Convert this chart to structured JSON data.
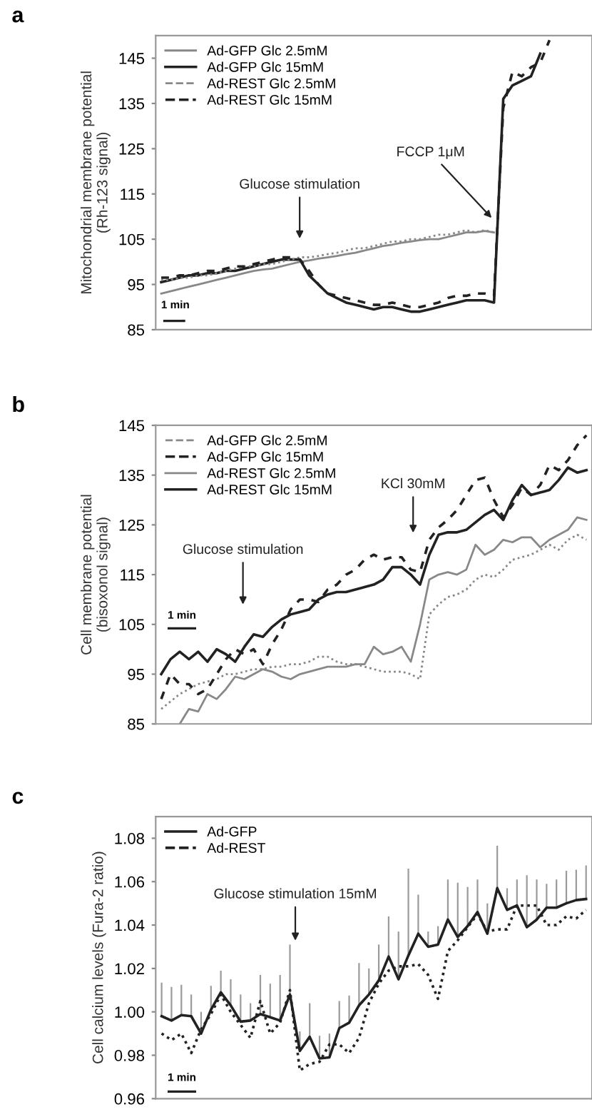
{
  "chart_data": [
    {
      "type": "line",
      "title": "a",
      "ylabel": "Mitochondrial membrane potential\n(Rh-123 signal)",
      "categories": [
        null,
        null,
        null,
        null,
        null,
        null,
        null,
        null,
        null,
        null,
        null,
        null,
        null,
        null,
        null,
        null,
        null,
        null,
        null,
        null,
        null,
        null,
        null,
        null,
        null,
        null,
        null,
        null,
        null,
        null,
        null,
        null,
        null,
        null,
        null,
        null,
        null,
        null,
        null,
        null,
        null,
        null,
        null,
        null,
        null,
        null,
        null
      ],
      "ylim": [
        85,
        150
      ],
      "yticks": [
        85,
        95,
        105,
        115,
        125,
        135,
        145
      ],
      "tick_labels": "y",
      "legend": "top left",
      "annotations": [
        "Glucose stimulation",
        "FCCP 1μM",
        "1 min"
      ],
      "series": [
        {
          "name": "Ad-GFP Glc 2.5mM",
          "color": "#888888",
          "line_style": "solid",
          "values": [
            93,
            93.5,
            94,
            94.5,
            95,
            95.5,
            96,
            96.5,
            97,
            97.5,
            98,
            98.3,
            98.5,
            99,
            99.5,
            100,
            100.3,
            100.7,
            101,
            101.3,
            101.7,
            102,
            102.5,
            103,
            103.5,
            103.8,
            104.2,
            104.5,
            104.8,
            105,
            105,
            105.5,
            106,
            106.5,
            106.5,
            106.8,
            106.5,
            null,
            null,
            null,
            null,
            null,
            null,
            null,
            null,
            null,
            null
          ]
        },
        {
          "name": "Ad-GFP Glc 15mM",
          "color": "#222222",
          "line_style": "solid",
          "values": [
            95.5,
            96,
            96.5,
            97,
            97,
            97.5,
            97.5,
            98,
            98,
            98.5,
            99,
            99.5,
            100,
            100.5,
            100.5,
            100.5,
            97,
            95,
            93,
            92,
            91,
            90.5,
            90,
            89.5,
            90,
            90,
            89.5,
            89,
            89,
            89.5,
            90,
            90.5,
            91,
            91.5,
            91.5,
            91.5,
            91,
            136,
            139,
            140,
            141,
            146,
            null,
            null,
            null,
            null,
            null
          ]
        },
        {
          "name": "Ad-REST Glc 2.5mM",
          "color": "#888888",
          "line_style": "dotted",
          "values": [
            96,
            96,
            96.5,
            96.5,
            97,
            97,
            97.5,
            98,
            98.5,
            99,
            99,
            99.5,
            99.5,
            100,
            100.5,
            101,
            101,
            101.3,
            101.7,
            102,
            102.5,
            103,
            103,
            103.5,
            104,
            104.5,
            104.5,
            105,
            105,
            105.5,
            106,
            106,
            106.5,
            107,
            106.5,
            107,
            106.5,
            null,
            null,
            null,
            null,
            null,
            null,
            null,
            null,
            null,
            null
          ]
        },
        {
          "name": "Ad-REST Glc 15mM",
          "color": "#222222",
          "line_style": "dashed",
          "values": [
            96.5,
            96.5,
            97,
            97,
            97.5,
            98,
            98,
            98.5,
            99,
            99,
            99.5,
            100,
            100.5,
            101,
            101,
            100.5,
            98,
            95,
            93,
            92.5,
            92,
            91.5,
            91,
            90.5,
            90.5,
            91,
            90.5,
            90,
            90,
            90.5,
            91,
            92,
            92.5,
            92.5,
            93,
            93,
            92.5,
            134,
            142,
            141,
            143,
            144,
            149,
            null,
            null,
            null,
            null
          ]
        }
      ]
    },
    {
      "type": "line",
      "title": "b",
      "ylabel": "Cell membrane potential\n(bisoxonol signal)",
      "categories": [
        null,
        null,
        null,
        null,
        null,
        null,
        null,
        null,
        null,
        null,
        null,
        null,
        null,
        null,
        null,
        null,
        null,
        null,
        null,
        null,
        null,
        null,
        null,
        null,
        null,
        null,
        null,
        null,
        null,
        null,
        null,
        null,
        null,
        null,
        null,
        null,
        null,
        null,
        null,
        null,
        null,
        null,
        null,
        null,
        null,
        null,
        null
      ],
      "ylim": [
        85,
        145
      ],
      "yticks": [
        85,
        95,
        105,
        115,
        125,
        135,
        145
      ],
      "tick_labels": "y",
      "legend": "top left",
      "annotations": [
        "Glucose stimulation",
        "KCl 30mM",
        "1 min"
      ],
      "series": [
        {
          "name": "Ad-GFP Glc 2.5mM",
          "color": "#888888",
          "line_style": "dotted",
          "values": [
            88,
            89.5,
            91,
            92,
            93,
            93.5,
            94,
            95,
            95,
            95.5,
            96,
            96,
            96.5,
            96.5,
            97,
            97,
            97.5,
            98.5,
            98.5,
            97.5,
            97,
            97,
            96.5,
            96,
            95.5,
            95.5,
            95.5,
            95,
            94,
            107,
            109,
            110.5,
            111,
            112,
            114,
            115,
            114.5,
            116,
            118,
            118.5,
            119,
            120,
            121,
            120,
            122,
            123,
            122
          ]
        },
        {
          "name": "Ad-GFP Glc 15mM",
          "color": "#222222",
          "line_style": "dashed",
          "values": [
            90,
            95,
            93,
            93,
            91,
            92,
            95,
            98,
            100,
            99,
            100,
            97,
            101,
            104,
            108,
            110,
            110,
            109.5,
            112,
            113,
            115,
            116,
            118,
            119,
            118,
            118.5,
            118.5,
            116,
            115.5,
            122,
            124.5,
            126,
            128,
            131,
            134,
            134.5,
            130,
            126.5,
            129,
            132.5,
            131,
            133,
            137,
            136,
            138,
            141,
            143
          ]
        },
        {
          "name": "Ad-REST Glc 2.5mM",
          "color": "#888888",
          "line_style": "solid",
          "values": [
            null,
            null,
            85,
            88,
            87.5,
            91,
            90,
            92,
            94.5,
            94,
            95,
            96,
            95.5,
            94.5,
            94,
            95,
            95.5,
            96,
            96.5,
            96.5,
            96.5,
            97,
            97,
            100.5,
            99,
            99.5,
            100.5,
            97.5,
            105,
            114,
            115,
            115.5,
            115,
            116,
            121,
            119,
            120,
            122,
            121.5,
            122.5,
            122.5,
            120.5,
            122,
            123,
            124,
            126.5,
            126
          ]
        },
        {
          "name": "Ad-REST Glc 15mM",
          "color": "#222222",
          "line_style": "solid",
          "values": [
            95,
            98,
            99.5,
            98,
            99.5,
            97.5,
            100,
            99,
            97.5,
            100.5,
            103,
            102.5,
            104.5,
            106,
            107,
            107.5,
            108,
            110,
            111,
            111.5,
            111.5,
            112,
            112.5,
            113,
            114,
            116.5,
            116.5,
            115,
            113,
            119,
            123,
            123.5,
            123.5,
            124,
            125.5,
            127,
            128,
            126,
            130,
            133,
            131,
            131.5,
            132,
            134,
            136.5,
            135.5,
            136
          ]
        }
      ]
    },
    {
      "type": "line",
      "title": "c",
      "ylabel": "Cell calcium levels (Fura-2 ratio)",
      "categories": [
        null,
        null,
        null,
        null,
        null,
        null,
        null,
        null,
        null,
        null,
        null,
        null,
        null,
        null,
        null,
        null,
        null,
        null,
        null,
        null,
        null,
        null,
        null,
        null,
        null,
        null,
        null,
        null,
        null,
        null,
        null,
        null,
        null,
        null,
        null,
        null,
        null,
        null,
        null,
        null,
        null,
        null,
        null,
        null
      ],
      "ylim": [
        0.96,
        1.09
      ],
      "yticks": [
        {
          "value": 0.96,
          "label": "0.96"
        },
        {
          "value": 0.98,
          "label": "0.98"
        },
        {
          "value": 1.0,
          "label": "1.00"
        },
        {
          "value": 1.02,
          "label": "1.02"
        },
        {
          "value": 1.04,
          "label": "1.04"
        },
        {
          "value": 1.06,
          "label": "1.06"
        },
        {
          "value": 1.08,
          "label": "1.08"
        }
      ],
      "tick_labels": "y",
      "legend": "top left",
      "annotations": [
        "Glucose stimulation 15mM",
        "1 min"
      ],
      "series": [
        {
          "name": "Ad-GFP",
          "color": "#222222",
          "line_style": "solid",
          "values": [
            0.998,
            0.996,
            0.9985,
            0.998,
            0.99,
            1.001,
            1.009,
            1.003,
            0.9955,
            0.996,
            0.999,
            0.9975,
            0.996,
            1.008,
            0.982,
            0.9885,
            0.9785,
            0.979,
            0.9925,
            0.995,
            1.003,
            1.008,
            1.0145,
            1.0255,
            1.015,
            1.026,
            1.036,
            1.03,
            1.031,
            1.0425,
            1.0345,
            1.0395,
            1.046,
            1.036,
            1.057,
            1.047,
            1.049,
            1.039,
            1.0425,
            1.048,
            1.048,
            1.05,
            1.0515,
            1.052
          ],
          "errors": [
            [
              0.998,
              1.0135
            ],
            [
              0.996,
              1.0115
            ],
            [
              0.9985,
              1.0125
            ],
            [
              0.998,
              1.008
            ],
            [
              0.99,
              1.0
            ],
            [
              1.001,
              1.012
            ],
            [
              1.009,
              1.019
            ],
            [
              1.003,
              1.015
            ],
            [
              0.9955,
              1.008
            ],
            [
              0.996,
              1.004
            ],
            [
              0.999,
              1.017
            ],
            [
              0.9975,
              1.013
            ],
            [
              0.996,
              1.017
            ],
            [
              1.008,
              1.031
            ],
            [
              0.982,
              0.991
            ],
            [
              0.9885,
              1.004
            ],
            [
              0.9785,
              0.989
            ],
            [
              0.979,
              0.99
            ],
            [
              0.9925,
              1.005
            ],
            [
              0.995,
              1.0075
            ],
            [
              1.003,
              1.0225
            ],
            [
              1.008,
              1.02
            ],
            [
              1.0145,
              1.031
            ],
            [
              1.0255,
              1.044
            ],
            [
              1.015,
              1.037
            ],
            [
              1.026,
              1.066
            ],
            [
              1.036,
              1.054
            ],
            [
              1.03,
              1.037
            ],
            [
              1.031,
              1.0395
            ],
            [
              1.0425,
              1.061
            ],
            [
              1.0345,
              1.0595
            ],
            [
              1.0395,
              1.0575
            ],
            [
              1.046,
              1.061
            ],
            [
              1.036,
              1.05
            ],
            [
              1.057,
              1.0765
            ],
            [
              1.047,
              1.057
            ],
            [
              1.049,
              1.061
            ],
            [
              1.039,
              1.063
            ],
            [
              1.0425,
              1.061
            ],
            [
              1.048,
              1.059
            ],
            [
              1.048,
              1.061
            ],
            [
              1.05,
              1.065
            ],
            [
              1.0515,
              1.0655
            ],
            [
              1.052,
              1.0675
            ]
          ]
        },
        {
          "name": "Ad-REST",
          "color": "#222222",
          "line_style": "dotted",
          "values": [
            0.99,
            0.987,
            0.99,
            0.981,
            0.992,
            0.999,
            1.008,
            1.0,
            0.994,
            0.988,
            1.005,
            0.99,
            0.995,
            1.01,
            0.973,
            0.976,
            0.977,
            0.985,
            0.985,
            0.981,
            0.988,
            1.004,
            1.013,
            1.019,
            1.021,
            1.021,
            1.022,
            1.017,
            1.006,
            1.028,
            1.033,
            1.039,
            1.045,
            1.037,
            1.038,
            1.038,
            1.049,
            1.049,
            1.049,
            1.04,
            1.04,
            1.044,
            1.043,
            1.047
          ]
        }
      ]
    }
  ]
}
